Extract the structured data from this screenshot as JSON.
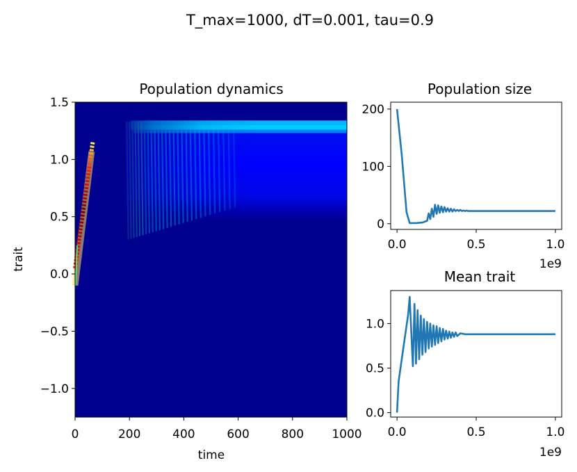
{
  "suptitle": "T_max=1000, dT=0.001, tau=0.9",
  "chart_data": [
    {
      "type": "heatmap",
      "title": "Population dynamics",
      "xlabel": "time",
      "ylabel": "trait",
      "xlim": [
        0,
        1000
      ],
      "ylim": [
        -1.25,
        1.5
      ],
      "xticks": [
        "0",
        "200",
        "400",
        "600",
        "800",
        "1000"
      ],
      "yticks": [
        "−1.0",
        "−0.5",
        "0.0",
        "0.5",
        "1.0",
        "1.5"
      ],
      "colormap": "jet",
      "colors": {
        "background": "#00008f",
        "field": "#0000ff",
        "band": "#00c8ff",
        "peak": "#800000",
        "hot": "#ff2000",
        "mid": "#ffff40"
      },
      "early_ridge": {
        "time": [
          0,
          65
        ],
        "trait": [
          0.05,
          1.15
        ]
      },
      "late_band": {
        "time_start": 185,
        "trait_center": 1.3,
        "oscillations_until_time": 600
      }
    },
    {
      "type": "line",
      "title": "Population size",
      "xlabel": "",
      "ylabel": "",
      "x_offset_label": "1e9",
      "xlim": [
        -0.04,
        1.04
      ],
      "ylim": [
        -10,
        212
      ],
      "xticks": [
        "0.0",
        "0.5",
        "1.0"
      ],
      "yticks": [
        "0",
        "100",
        "200"
      ],
      "line_color": "#1f77b4",
      "x": [
        0.0,
        0.03,
        0.06,
        0.08,
        0.12,
        0.16,
        0.19,
        0.2,
        0.21,
        0.22,
        0.23,
        0.24,
        0.25,
        0.26,
        0.27,
        0.28,
        0.29,
        0.3,
        0.31,
        0.32,
        0.33,
        0.34,
        0.35,
        0.36,
        0.37,
        0.38,
        0.39,
        0.4,
        0.41,
        0.42,
        0.43,
        0.44,
        0.45,
        0.47,
        0.5,
        0.6,
        0.75,
        1.0
      ],
      "y": [
        200,
        120,
        20,
        1,
        1,
        2,
        5,
        18,
        8,
        26,
        12,
        33,
        17,
        32,
        19,
        30,
        20,
        29,
        21,
        27,
        21,
        26,
        21,
        25,
        22,
        24,
        22,
        24,
        22,
        23,
        22,
        23,
        22,
        22,
        22,
        22,
        22,
        22
      ]
    },
    {
      "type": "line",
      "title": "Mean trait",
      "xlabel": "",
      "ylabel": "",
      "x_offset_label": "1e9",
      "xlim": [
        -0.04,
        1.04
      ],
      "ylim": [
        -0.05,
        1.37
      ],
      "xticks": [
        "0.0",
        "0.5",
        "1.0"
      ],
      "yticks": [
        "0.0",
        "0.5",
        "1.0"
      ],
      "line_color": "#1f77b4",
      "x": [
        0.0,
        0.01,
        0.03,
        0.05,
        0.07,
        0.08,
        0.1,
        0.11,
        0.12,
        0.13,
        0.14,
        0.15,
        0.16,
        0.17,
        0.18,
        0.19,
        0.2,
        0.21,
        0.22,
        0.23,
        0.24,
        0.25,
        0.26,
        0.27,
        0.28,
        0.29,
        0.3,
        0.31,
        0.32,
        0.33,
        0.34,
        0.35,
        0.36,
        0.37,
        0.38,
        0.4,
        0.43,
        0.5,
        0.6,
        1.0
      ],
      "y": [
        0.0,
        0.35,
        0.6,
        0.85,
        1.1,
        1.3,
        0.52,
        1.22,
        0.55,
        1.15,
        0.6,
        1.09,
        0.65,
        1.05,
        0.68,
        1.02,
        0.72,
        1.0,
        0.74,
        0.98,
        0.76,
        0.97,
        0.78,
        0.95,
        0.8,
        0.94,
        0.82,
        0.92,
        0.83,
        0.91,
        0.84,
        0.9,
        0.85,
        0.9,
        0.86,
        0.89,
        0.88,
        0.88,
        0.88,
        0.88
      ]
    }
  ]
}
